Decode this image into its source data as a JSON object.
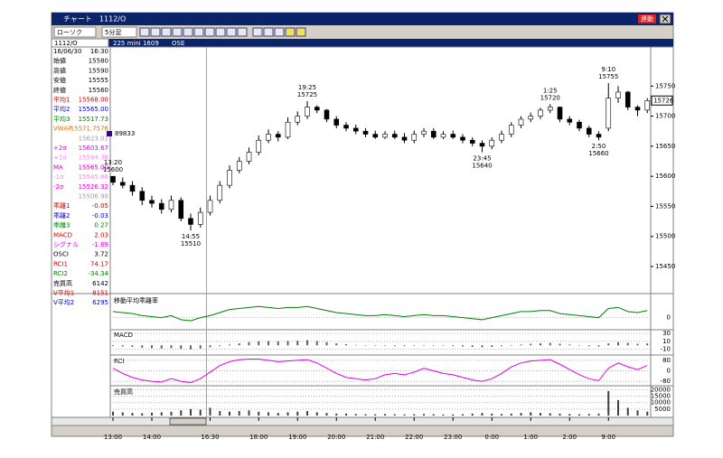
{
  "window": {
    "title": "チャート　1112/O",
    "badge": "連動"
  },
  "toolbar": {
    "chart_style": "ローソク",
    "interval": "5分足"
  },
  "header": {
    "code": "1112/O",
    "name": "225 mini 1609",
    "exchange": "OSE"
  },
  "panel": {
    "rows": [
      {
        "label": "16/06/30",
        "value": "16:30",
        "color": "#000000"
      },
      {
        "label": "始値",
        "value": "15580",
        "color": "#000000"
      },
      {
        "label": "高値",
        "value": "15590",
        "color": "#000000"
      },
      {
        "label": "安値",
        "value": "15555",
        "color": "#000000"
      },
      {
        "label": "終値",
        "value": "15560",
        "color": "#000000"
      },
      {
        "label": "平均1",
        "value": "15568.00",
        "color": "#d00000"
      },
      {
        "label": "平均2",
        "value": "15565.00",
        "color": "#0000c0"
      },
      {
        "label": "平均3",
        "value": "15517.73",
        "color": "#008000"
      },
      {
        "label": "VWAP",
        "value": "15571.7576",
        "color": "#e07000"
      },
      {
        "label": null,
        "value": "15623.01",
        "color": "#a0a0a0"
      },
      {
        "label": "+2σ",
        "value": "15603.67",
        "color": "#e000e0"
      },
      {
        "label": "+1σ",
        "value": "15584.38",
        "color": "#ff80ff"
      },
      {
        "label": "MA",
        "value": "15565.00",
        "color": "#c000c0"
      },
      {
        "label": "-1σ",
        "value": "15545.66",
        "color": "#ff80ff"
      },
      {
        "label": "-2σ",
        "value": "15526.32",
        "color": "#e000e0"
      },
      {
        "label": null,
        "value": "15506.98",
        "color": "#a0a0a0"
      },
      {
        "label": "乖離1",
        "value": "-0.05",
        "color": "#d00000"
      },
      {
        "label": "乖離2",
        "value": "-0.03",
        "color": "#0000c0"
      },
      {
        "label": "乖離3",
        "value": "0.27",
        "color": "#008000"
      },
      {
        "label": "MACD",
        "value": "2.03",
        "color": "#d00000"
      },
      {
        "label": "シグナル",
        "value": "-1.69",
        "color": "#e000e0"
      },
      {
        "label": "OSCI",
        "value": "3.72",
        "color": "#000000"
      },
      {
        "label": "RCI1",
        "value": "74.17",
        "color": "#d00000"
      },
      {
        "label": "RCI2",
        "value": "-34.34",
        "color": "#008000"
      },
      {
        "label": "売買高",
        "value": "6142",
        "color": "#000000"
      },
      {
        "label": "V平均1",
        "value": "8151",
        "color": "#d00000"
      },
      {
        "label": "V平均2",
        "value": "6295",
        "color": "#0000c0"
      }
    ]
  },
  "chart_data": [
    {
      "type": "candlestick",
      "price_label": 15726,
      "marker_label": "89833",
      "categories": [
        "13:00",
        null,
        null,
        null,
        "14:00",
        null,
        null,
        null,
        null,
        null,
        "16:30",
        null,
        null,
        null,
        null,
        "18:00",
        null,
        null,
        null,
        "19:00",
        null,
        null,
        null,
        "20:00",
        null,
        null,
        null,
        "21:00",
        null,
        null,
        null,
        "22:00",
        null,
        null,
        null,
        "23:00",
        null,
        null,
        null,
        "0:00",
        null,
        null,
        null,
        "1:00",
        null,
        null,
        null,
        "2:00",
        null,
        null,
        null,
        "9:00",
        null,
        null,
        null,
        null
      ],
      "open": [
        15600,
        15590,
        15585,
        15575,
        15560,
        15555,
        15545,
        15560,
        15530,
        15520,
        15540,
        15560,
        15585,
        15610,
        15625,
        15640,
        15660,
        15670,
        15665,
        15690,
        15700,
        15715,
        15710,
        15695,
        15685,
        15680,
        15675,
        15670,
        15665,
        15670,
        15665,
        15660,
        15670,
        15675,
        15665,
        15670,
        15665,
        15660,
        15655,
        15650,
        15660,
        15670,
        15685,
        15695,
        15700,
        15710,
        15715,
        15695,
        15690,
        15680,
        15670,
        15680,
        15730,
        15740,
        15715,
        15710
      ],
      "high": [
        15600,
        15598,
        15592,
        15582,
        15568,
        15562,
        15568,
        15565,
        15538,
        15548,
        15568,
        15592,
        15618,
        15632,
        15648,
        15668,
        15678,
        15675,
        15698,
        15708,
        15725,
        15718,
        15712,
        15700,
        15690,
        15686,
        15680,
        15676,
        15675,
        15676,
        15672,
        15676,
        15680,
        15680,
        15675,
        15676,
        15670,
        15665,
        15660,
        15665,
        15676,
        15690,
        15700,
        15706,
        15714,
        15720,
        15716,
        15700,
        15694,
        15684,
        15675,
        15755,
        15750,
        15742,
        15718,
        15730
      ],
      "low": [
        15585,
        15580,
        15568,
        15552,
        15548,
        15538,
        15540,
        15525,
        15510,
        15515,
        15535,
        15555,
        15580,
        15605,
        15620,
        15635,
        15655,
        15658,
        15662,
        15685,
        15695,
        15705,
        15690,
        15680,
        15675,
        15670,
        15665,
        15662,
        15662,
        15662,
        15655,
        15655,
        15665,
        15662,
        15662,
        15662,
        15655,
        15650,
        15640,
        15645,
        15655,
        15665,
        15680,
        15690,
        15695,
        15705,
        15690,
        15685,
        15675,
        15665,
        15660,
        15675,
        15722,
        15710,
        15700,
        15705
      ],
      "close": [
        15590,
        15585,
        15575,
        15560,
        15555,
        15545,
        15560,
        15530,
        15520,
        15540,
        15560,
        15585,
        15610,
        15625,
        15640,
        15660,
        15670,
        15665,
        15690,
        15700,
        15715,
        15710,
        15695,
        15685,
        15680,
        15675,
        15670,
        15665,
        15670,
        15665,
        15660,
        15670,
        15675,
        15665,
        15670,
        15665,
        15660,
        15655,
        15650,
        15660,
        15670,
        15685,
        15695,
        15700,
        15710,
        15715,
        15695,
        15690,
        15680,
        15670,
        15665,
        15730,
        15740,
        15715,
        15710,
        15726
      ],
      "ylim": [
        15405,
        15815
      ],
      "yticks": [
        15450,
        15500,
        15550,
        15600,
        15650,
        15700,
        15750
      ],
      "annotations": [
        {
          "time": "13:20",
          "price": 15600
        },
        {
          "time": "14:55",
          "price": 15510
        },
        {
          "time": "19:25",
          "price": 15725
        },
        {
          "time": "23:45",
          "price": 15640
        },
        {
          "time": "1:25",
          "price": 15720
        },
        {
          "time": "2:50",
          "price": 15660
        },
        {
          "time": "9:10",
          "price": 15755
        }
      ]
    },
    {
      "type": "line",
      "title": "移動平均乖離率",
      "color": "#008000",
      "ylim": [
        -0.5,
        1.0
      ],
      "yticks": [
        0
      ],
      "values": [
        0.3,
        0.25,
        0.2,
        0.1,
        0.05,
        0,
        0.1,
        -0.1,
        -0.15,
        0,
        0.1,
        0.25,
        0.4,
        0.45,
        0.5,
        0.55,
        0.5,
        0.45,
        0.5,
        0.5,
        0.55,
        0.45,
        0.35,
        0.25,
        0.2,
        0.15,
        0.1,
        0.1,
        0.15,
        0.1,
        0.05,
        0.1,
        0.15,
        0.1,
        0.1,
        0.05,
        0,
        -0.05,
        -0.1,
        0,
        0.1,
        0.2,
        0.3,
        0.3,
        0.35,
        0.35,
        0.2,
        0.15,
        0.1,
        0.05,
        0,
        0.45,
        0.5,
        0.3,
        0.25,
        0.35
      ]
    },
    {
      "type": "bar",
      "title": "MACD",
      "color": "#606060",
      "ylim": [
        -20,
        35
      ],
      "yticks": [
        30,
        10,
        -10
      ],
      "values": [
        -2,
        -3,
        -4,
        -6,
        -7,
        -8,
        -7,
        -9,
        -10,
        -8,
        -5,
        -2,
        2,
        5,
        8,
        10,
        11,
        10,
        11,
        12,
        13,
        11,
        8,
        5,
        3,
        1,
        0,
        -1,
        -1,
        -2,
        -2,
        -1,
        0,
        -1,
        -1,
        -2,
        -3,
        -4,
        -5,
        -4,
        -2,
        0,
        2,
        4,
        5,
        6,
        4,
        2,
        0,
        -2,
        -3,
        5,
        8,
        6,
        4,
        5
      ]
    },
    {
      "type": "line",
      "title": "RCI",
      "color": "#e000e0",
      "ylim": [
        -100,
        100
      ],
      "yticks": [
        80,
        0,
        -80
      ],
      "values": [
        20,
        -20,
        -50,
        -70,
        -80,
        -85,
        -60,
        -80,
        -90,
        -60,
        -10,
        40,
        70,
        85,
        90,
        90,
        80,
        70,
        75,
        80,
        85,
        60,
        20,
        -20,
        -50,
        -60,
        -70,
        -60,
        -30,
        -20,
        -30,
        -10,
        20,
        0,
        -20,
        -30,
        -50,
        -70,
        -80,
        -60,
        -20,
        30,
        60,
        75,
        80,
        85,
        50,
        10,
        -30,
        -60,
        -75,
        20,
        60,
        30,
        10,
        40
      ]
    },
    {
      "type": "bar",
      "title": "売買高",
      "color": "#404040",
      "ylim": [
        0,
        21000
      ],
      "yticks": [
        20000,
        15000,
        10000,
        5000
      ],
      "values": [
        3000,
        2500,
        2000,
        1800,
        2200,
        2500,
        3000,
        4000,
        5000,
        4500,
        6000,
        3500,
        3000,
        3500,
        4000,
        3000,
        2500,
        2000,
        2500,
        3000,
        3500,
        2500,
        2000,
        1500,
        1500,
        1200,
        1000,
        1000,
        1200,
        1000,
        900,
        1000,
        1200,
        1000,
        800,
        900,
        1000,
        1500,
        2000,
        1500,
        1200,
        1500,
        2000,
        2500,
        2000,
        1800,
        1500,
        1200,
        1000,
        1200,
        1500,
        19000,
        12000,
        6000,
        4000,
        3000
      ]
    }
  ]
}
